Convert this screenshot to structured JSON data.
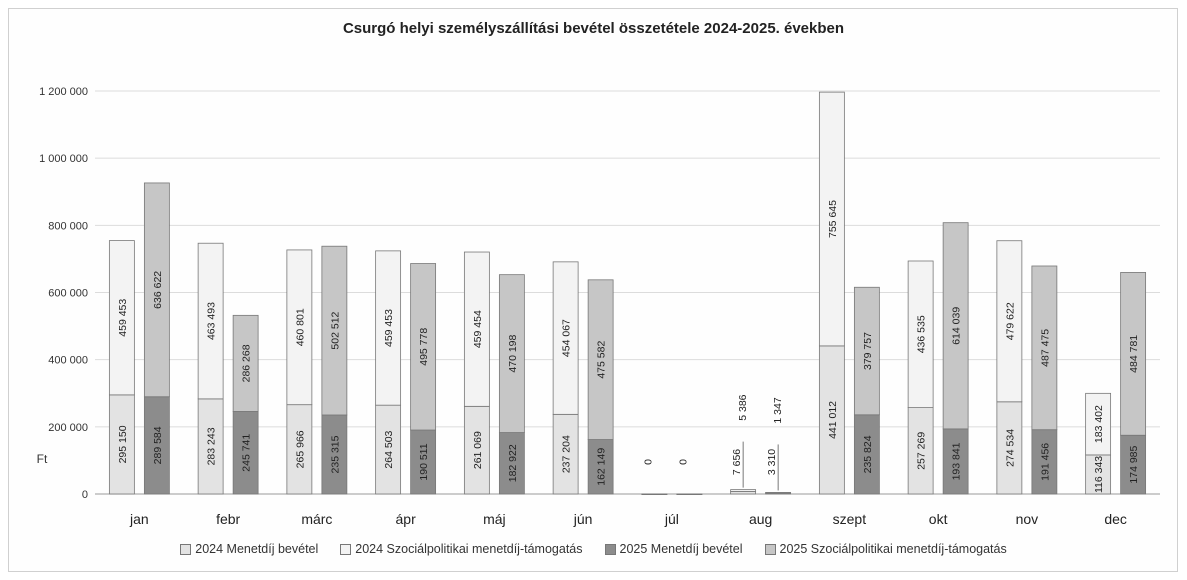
{
  "chart_data": {
    "type": "bar",
    "title": "Csurgó helyi személyszállítási bevétel összetétele 2024-2025. években",
    "ylabel": "Ft",
    "ylim": [
      0,
      1200000
    ],
    "yticks": [
      0,
      200000,
      400000,
      600000,
      800000,
      1000000,
      1200000
    ],
    "ytick_labels": [
      "0",
      "200 000",
      "400 000",
      "600 000",
      "800 000",
      "1 000 000",
      "1 200 000"
    ],
    "grid": true,
    "legend_placement": "bottom",
    "stacked": true,
    "categories": [
      "jan",
      "febr",
      "márc",
      "ápr",
      "máj",
      "jún",
      "júl",
      "aug",
      "szept",
      "okt",
      "nov",
      "dec"
    ],
    "series": [
      {
        "name": "2024 Menetdíj bevétel",
        "stack": "2024",
        "color": "#e3e3e3",
        "values": [
          295150,
          283243,
          265966,
          264503,
          261069,
          237204,
          0,
          7656,
          441012,
          257269,
          274534,
          116343
        ],
        "labels": [
          "295 150",
          "283 243",
          "265 966",
          "264 503",
          "261 069",
          "237 204",
          "0",
          "7 656",
          "441 012",
          "257 269",
          "274 534",
          "116 343"
        ]
      },
      {
        "name": "2024 Szociálpolitikai menetdíj-támogatás",
        "stack": "2024",
        "color": "#f3f3f3",
        "values": [
          459453,
          463493,
          460801,
          459453,
          459454,
          454067,
          0,
          5386,
          755645,
          436535,
          479622,
          183402
        ],
        "labels": [
          "459 453",
          "463 493",
          "460 801",
          "459 453",
          "459 454",
          "454 067",
          "",
          "5 386",
          "755 645",
          "436 535",
          "479 622",
          "183 402"
        ]
      },
      {
        "name": "2025 Menetdíj bevétel",
        "stack": "2025",
        "color": "#8c8c8c",
        "values": [
          289584,
          245741,
          235315,
          190511,
          182922,
          162149,
          0,
          3310,
          235824,
          193841,
          191456,
          174985
        ],
        "labels": [
          "289 584",
          "245 741",
          "235 315",
          "190 511",
          "182 922",
          "162 149",
          "0",
          "3 310",
          "235 824",
          "193 841",
          "191 456",
          "174 985"
        ]
      },
      {
        "name": "2025 Szociálpolitikai menetdíj-támogatás",
        "stack": "2025",
        "color": "#c6c6c6",
        "values": [
          636622,
          286268,
          502512,
          495778,
          470198,
          475582,
          0,
          1347,
          379757,
          614039,
          487475,
          484781
        ],
        "labels": [
          "636 622",
          "286 268",
          "502 512",
          "495 778",
          "470 198",
          "475 582",
          "",
          "1 347",
          "379 757",
          "614 039",
          "487 475",
          "484 781"
        ]
      }
    ]
  }
}
